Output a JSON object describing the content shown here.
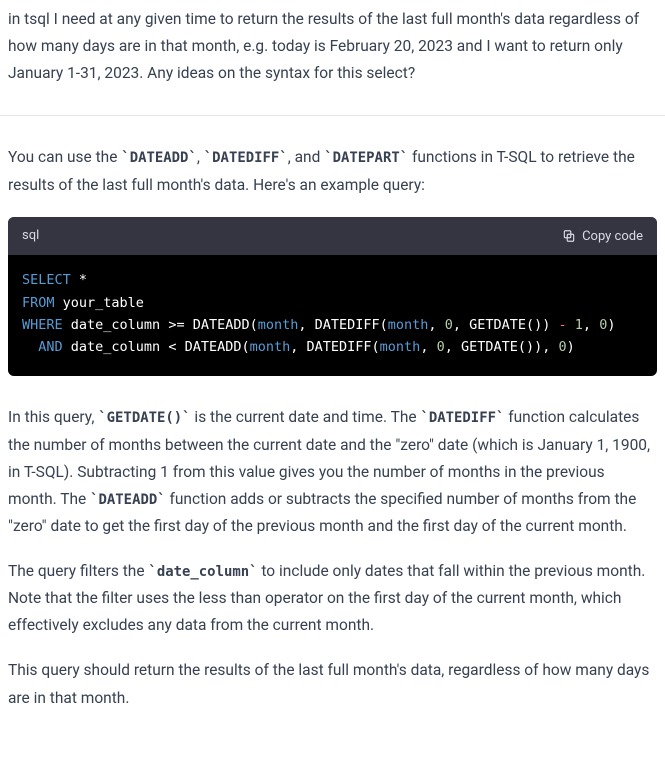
{
  "question": {
    "text": "in tsql I need at any given time to return the results of the last full month's data regardless of how many days are in that month, e.g. today is February 20, 2023 and I want to return only January 1-31, 2023. Any ideas on the syntax for this select?"
  },
  "answer": {
    "intro_parts": [
      "You can use the ",
      "DATEADD",
      ", ",
      "DATEDIFF",
      ", and ",
      "DATEPART",
      " functions in T-SQL to retrieve the results of the last full month's data. Here's an example query:"
    ],
    "para2_parts": [
      "In this query, ",
      "GETDATE()",
      " is the current date and time. The ",
      "DATEDIFF",
      " function calculates the number of months between the current date and the \"zero\" date (which is January 1, 1900, in T-SQL). Subtracting 1 from this value gives you the number of months in the previous month. The ",
      "DATEADD",
      " function adds or subtracts the specified number of months from the \"zero\" date to get the first day of the previous month and the first day of the current month."
    ],
    "para3_parts": [
      "The query filters the ",
      "date_column",
      " to include only dates that fall within the previous month. Note that the filter uses the less than operator on the first day of the current month, which effectively excludes any data from the current month."
    ],
    "para4": "This query should return the results of the last full month's data, regardless of how many days are in that month."
  },
  "code_block": {
    "language_label": "sql",
    "copy_label": "Copy code",
    "syntax_colors": {
      "keyword": "#569cd6",
      "func_like": "#569cd6",
      "number": "#b5cea8",
      "minus": "#f97583",
      "default": "#ffffff"
    },
    "tokens": [
      [
        {
          "t": "SELECT",
          "c": "keyword"
        },
        {
          "t": " *",
          "c": "default"
        }
      ],
      [
        {
          "t": "FROM",
          "c": "keyword"
        },
        {
          "t": " your_table",
          "c": "default"
        }
      ],
      [
        {
          "t": "WHERE",
          "c": "keyword"
        },
        {
          "t": " date_column ",
          "c": "default"
        },
        {
          "t": ">=",
          "c": "default"
        },
        {
          "t": " DATEADD(",
          "c": "default"
        },
        {
          "t": "month",
          "c": "func_like"
        },
        {
          "t": ", DATEDIFF(",
          "c": "default"
        },
        {
          "t": "month",
          "c": "func_like"
        },
        {
          "t": ", ",
          "c": "default"
        },
        {
          "t": "0",
          "c": "number"
        },
        {
          "t": ", GETDATE()) ",
          "c": "default"
        },
        {
          "t": "-",
          "c": "minus"
        },
        {
          "t": " ",
          "c": "default"
        },
        {
          "t": "1",
          "c": "number"
        },
        {
          "t": ", ",
          "c": "default"
        },
        {
          "t": "0",
          "c": "number"
        },
        {
          "t": ")",
          "c": "default"
        }
      ],
      [
        {
          "t": "  ",
          "c": "default"
        },
        {
          "t": "AND",
          "c": "keyword"
        },
        {
          "t": " date_column ",
          "c": "default"
        },
        {
          "t": "<",
          "c": "default"
        },
        {
          "t": " DATEADD(",
          "c": "default"
        },
        {
          "t": "month",
          "c": "func_like"
        },
        {
          "t": ", DATEDIFF(",
          "c": "default"
        },
        {
          "t": "month",
          "c": "func_like"
        },
        {
          "t": ", ",
          "c": "default"
        },
        {
          "t": "0",
          "c": "number"
        },
        {
          "t": ", GETDATE()), ",
          "c": "default"
        },
        {
          "t": "0",
          "c": "number"
        },
        {
          "t": ")",
          "c": "default"
        }
      ]
    ]
  }
}
